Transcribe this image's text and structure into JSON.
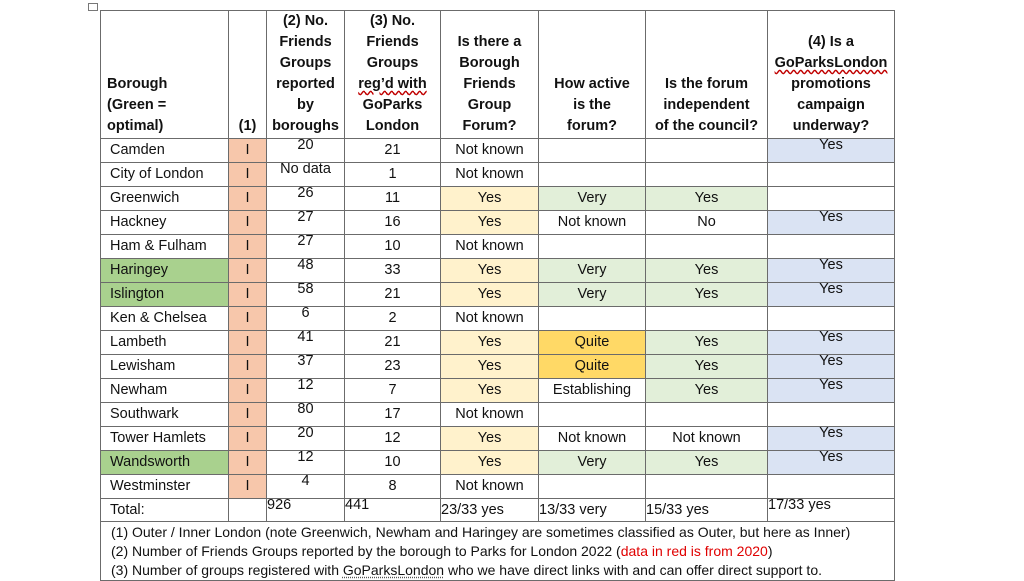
{
  "headers": {
    "borough": [
      "Borough",
      "(Green =",
      "optimal)"
    ],
    "col1": "(1)",
    "col2": [
      "(2) No.",
      "Friends",
      "Groups",
      "reported",
      "by",
      "boroughs"
    ],
    "col3": [
      "(3) No.",
      "Friends",
      "Groups",
      "reg’d with",
      "GoParks",
      "London"
    ],
    "col4": [
      "Is there a",
      "Borough",
      "Friends",
      "Group",
      "Forum?"
    ],
    "col5": [
      "How active",
      "is the",
      "forum?"
    ],
    "col6": [
      "Is the forum",
      "independent",
      "of the council?"
    ],
    "col7": [
      "(4) Is a",
      "GoParksLondon",
      "promotions",
      "campaign",
      "underway?"
    ]
  },
  "rows": [
    {
      "borough": "Camden",
      "io": "I",
      "reported": "20",
      "registered": "21",
      "forum": "Not known",
      "active": "",
      "independent": "",
      "campaign": "Yes"
    },
    {
      "borough": "City of London",
      "io": "I",
      "reported": "No data",
      "registered": "1",
      "forum": "Not known",
      "active": "",
      "independent": "",
      "campaign": ""
    },
    {
      "borough": "Greenwich",
      "io": "I",
      "reported": "26",
      "registered": "11",
      "forum": "Yes",
      "active": "Very",
      "independent": "Yes",
      "campaign": ""
    },
    {
      "borough": "Hackney",
      "io": "I",
      "reported": "27",
      "registered": "16",
      "forum": "Yes",
      "active": "Not known",
      "independent": "No",
      "campaign": "Yes"
    },
    {
      "borough": "Ham & Fulham",
      "io": "I",
      "reported": "27",
      "registered": "10",
      "forum": "Not known",
      "active": "",
      "independent": "",
      "campaign": ""
    },
    {
      "borough": "Haringey",
      "io": "I",
      "reported": "48",
      "registered": "33",
      "forum": "Yes",
      "active": "Very",
      "independent": "Yes",
      "campaign": "Yes"
    },
    {
      "borough": "Islington",
      "io": "I",
      "reported": "58",
      "registered": "21",
      "forum": "Yes",
      "active": "Very",
      "independent": "Yes",
      "campaign": "Yes"
    },
    {
      "borough": "Ken & Chelsea",
      "io": "I",
      "reported": "6",
      "registered": "2",
      "forum": "Not known",
      "active": "",
      "independent": "",
      "campaign": ""
    },
    {
      "borough": "Lambeth",
      "io": "I",
      "reported": "41",
      "registered": "21",
      "forum": "Yes",
      "active": "Quite",
      "independent": "Yes",
      "campaign": "Yes"
    },
    {
      "borough": "Lewisham",
      "io": "I",
      "reported": "37",
      "registered": "23",
      "forum": "Yes",
      "active": "Quite",
      "independent": "Yes",
      "campaign": "Yes"
    },
    {
      "borough": "Newham",
      "io": "I",
      "reported": "12",
      "registered": "7",
      "forum": "Yes",
      "active": "Establishing",
      "independent": "Yes",
      "campaign": "Yes"
    },
    {
      "borough": "Southwark",
      "io": "I",
      "reported": "80",
      "registered": "17",
      "forum": "Not known",
      "active": "",
      "independent": "",
      "campaign": ""
    },
    {
      "borough": "Tower Hamlets",
      "io": "I",
      "reported": "20",
      "registered": "12",
      "forum": "Yes",
      "active": "Not known",
      "independent": "Not known",
      "campaign": "Yes"
    },
    {
      "borough": "Wandsworth",
      "io": "I",
      "reported": "12",
      "registered": "10",
      "forum": "Yes",
      "active": "Very",
      "independent": "Yes",
      "campaign": "Yes"
    },
    {
      "borough": "Westminster",
      "io": "I",
      "reported": "4",
      "registered": "8",
      "forum": "Not known",
      "active": "",
      "independent": "",
      "campaign": ""
    }
  ],
  "total": {
    "label": "Total:",
    "reported": "926",
    "registered": "441",
    "forum": "23/33 yes",
    "active": "13/33 very",
    "independent": "15/33 yes",
    "campaign": "17/33 yes"
  },
  "notes": {
    "n1": "(1)   Outer / Inner London (note Greenwich, Newham and Haringey are sometimes classified as Outer, but here as Inner)",
    "n2_pre": "(2)   Number of Friends Groups reported by the borough to Parks for London 2022 (",
    "n2_red": "data in red is from 2020",
    "n2_post": ")",
    "n3_pre": "(3)   Number of groups registered with ",
    "n3_link": "GoParksLondon",
    "n3_post": " who we have direct links with and can offer direct support to."
  },
  "colors": {
    "inner_london": "#f7c7ab",
    "optimal_borough": "#a9d18e",
    "forum_yes": "#fff2cc",
    "activity_quite": "#ffd966",
    "activity_and_independence": "#e2efd9",
    "campaign_yes": "#dae3f3",
    "red_text": "#e00000"
  }
}
